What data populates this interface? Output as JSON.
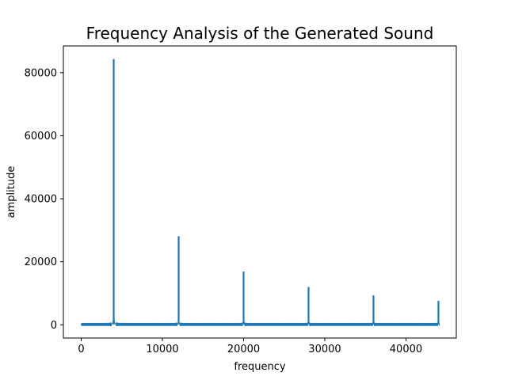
{
  "chart_data": {
    "type": "line",
    "title": "Frequency Analysis of the Generated Sound",
    "xlabel": "frequency",
    "ylabel": "amplitude",
    "xlim": [
      -2200,
      46200
    ],
    "ylim": [
      -4200,
      88500
    ],
    "xticks": [
      0,
      10000,
      20000,
      30000,
      40000
    ],
    "yticks": [
      0,
      20000,
      40000,
      60000,
      80000
    ],
    "grid": false,
    "color": "#1f77b4",
    "series": [
      {
        "peaks": [
          {
            "x": 4000,
            "y": 84300
          },
          {
            "x": 12000,
            "y": 28100
          },
          {
            "x": 20000,
            "y": 16900
          },
          {
            "x": 28000,
            "y": 12000
          },
          {
            "x": 36000,
            "y": 9300
          },
          {
            "x": 44000,
            "y": 7600
          }
        ],
        "x_end": 44100,
        "baseline_y": 150
      }
    ]
  }
}
